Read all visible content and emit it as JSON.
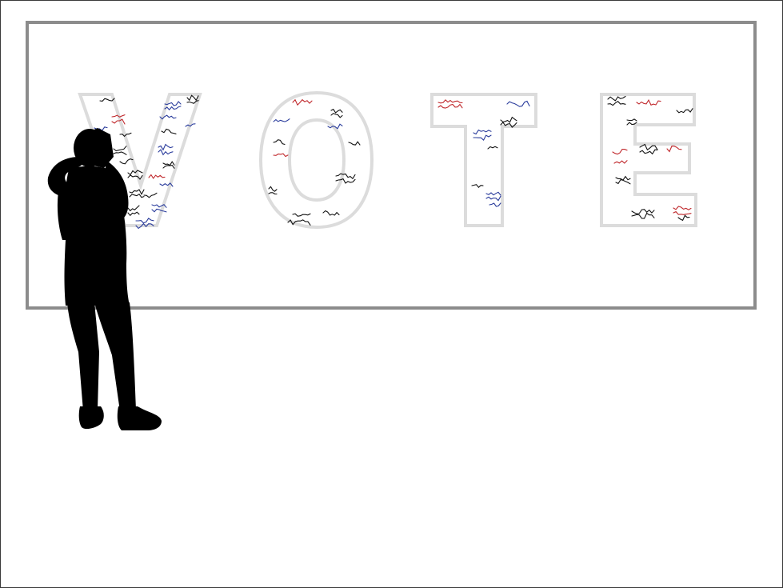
{
  "artwork": {
    "letters": [
      "V",
      "O",
      "T",
      "E"
    ],
    "colors": {
      "outline": "#dcdcdc",
      "board_border": "#8c8c8c",
      "silhouette": "#000000",
      "ink_black": "#111111",
      "ink_blue": "#2a3c9c",
      "ink_red": "#c0282c"
    }
  }
}
